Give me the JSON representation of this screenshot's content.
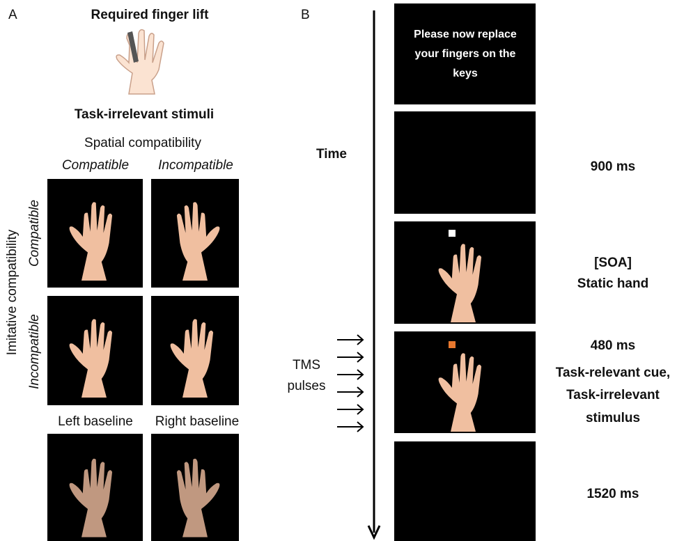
{
  "panel_a": {
    "label": "A",
    "finger_lift_title": "Required finger lift",
    "stimuli_title": "Task-irrelevant stimuli",
    "spatial_heading": "Spatial compatibility",
    "columns": [
      "Compatible",
      "Incompatible"
    ],
    "imitative_heading": "Imitative compatibility",
    "rows": [
      "Compatible",
      "Incompatible"
    ],
    "baselines": [
      "Left baseline",
      "Right baseline"
    ]
  },
  "panel_b": {
    "label": "B",
    "time_label": "Time",
    "tms_label": [
      "TMS",
      "pulses"
    ],
    "screen_text": [
      "Please now replace",
      "your fingers on the",
      "keys"
    ],
    "durations": [
      [
        "900 ms"
      ],
      [
        "[SOA]",
        "Static hand"
      ],
      [
        "480 ms",
        "Task-relevant cue,",
        "Task-irrelevant",
        "stimulus"
      ],
      [
        "1520 ms"
      ]
    ]
  }
}
